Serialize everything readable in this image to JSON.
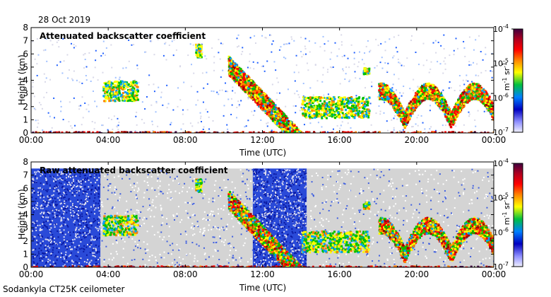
{
  "chart_data": {
    "date": "28 Oct 2019",
    "footer": "Sodankyla CT25K ceilometer",
    "panels": [
      {
        "type": "heatmap",
        "title": "Attenuated backscatter coefficient",
        "xlabel": "Time (UTC)",
        "ylabel": "Height (km)",
        "x_ticks": [
          "00:00",
          "04:00",
          "08:00",
          "12:00",
          "16:00",
          "20:00",
          "00:00"
        ],
        "y_ticks": [
          "0",
          "1",
          "2",
          "3",
          "4",
          "5",
          "6",
          "7",
          "8"
        ],
        "xlim_hours": [
          0,
          24
        ],
        "ylim_km": [
          0,
          8
        ],
        "colorbar": {
          "unit_base": "m",
          "unit_exp1": "-1",
          "unit_base2": "sr",
          "unit_exp2": "-1",
          "tick_base": "10",
          "tick_exps": [
            "-7",
            "-6",
            "-5",
            "-4"
          ],
          "scale": "log"
        },
        "features": [
          {
            "name": "surface-layer",
            "t": [
              0,
              24
            ],
            "h": [
              0,
              0.15
            ]
          },
          {
            "name": "cloud-04h",
            "t": [
              3.7,
              5.5
            ],
            "h": [
              2.5,
              4.0
            ]
          },
          {
            "name": "cloud-08h",
            "t": [
              8.5,
              8.8
            ],
            "h": [
              5.8,
              6.8
            ]
          },
          {
            "name": "descending-precip",
            "t": [
              10.2,
              14.0
            ],
            "h": [
              0,
              5.5
            ]
          },
          {
            "name": "low-cloud-14-17h",
            "t": [
              14.0,
              17.5
            ],
            "h": [
              1.2,
              2.8
            ]
          },
          {
            "name": "cloud-17h",
            "t": [
              17.2,
              17.5
            ],
            "h": [
              4.5,
              5.0
            ]
          },
          {
            "name": "evening-clouds",
            "t": [
              18.0,
              24
            ],
            "h": [
              0.2,
              4.2
            ]
          }
        ]
      },
      {
        "type": "heatmap",
        "title": "Raw attenuated backscatter coefficient",
        "xlabel": "Time (UTC)",
        "ylabel": "Height (km)",
        "x_ticks": [
          "00:00",
          "04:00",
          "08:00",
          "12:00",
          "16:00",
          "20:00",
          "00:00"
        ],
        "y_ticks": [
          "0",
          "1",
          "2",
          "3",
          "4",
          "5",
          "6",
          "7",
          "8"
        ],
        "xlim_hours": [
          0,
          24
        ],
        "ylim_km": [
          0,
          8
        ],
        "colorbar": {
          "unit_base": "m",
          "unit_exp1": "-1",
          "unit_base2": "sr",
          "unit_exp2": "-1",
          "tick_base": "10",
          "tick_exps": [
            "-7",
            "-6",
            "-5",
            "-4"
          ],
          "scale": "log"
        },
        "noise_blocks": [
          {
            "t": [
              0,
              3.6
            ],
            "level": "high"
          },
          {
            "t": [
              3.6,
              11.5
            ],
            "level": "grey"
          },
          {
            "t": [
              11.5,
              14.3
            ],
            "level": "high"
          },
          {
            "t": [
              14.3,
              24
            ],
            "level": "grey"
          }
        ]
      }
    ]
  },
  "colors": {
    "scale": [
      "#f0f0ff",
      "#8080ff",
      "#0000cc",
      "#00a0ff",
      "#00c000",
      "#ffff00",
      "#ff8000",
      "#ff0000",
      "#a00000",
      "#400040"
    ],
    "noise_grey": "#d4d4d4",
    "noise_blue": "#3050e0"
  }
}
